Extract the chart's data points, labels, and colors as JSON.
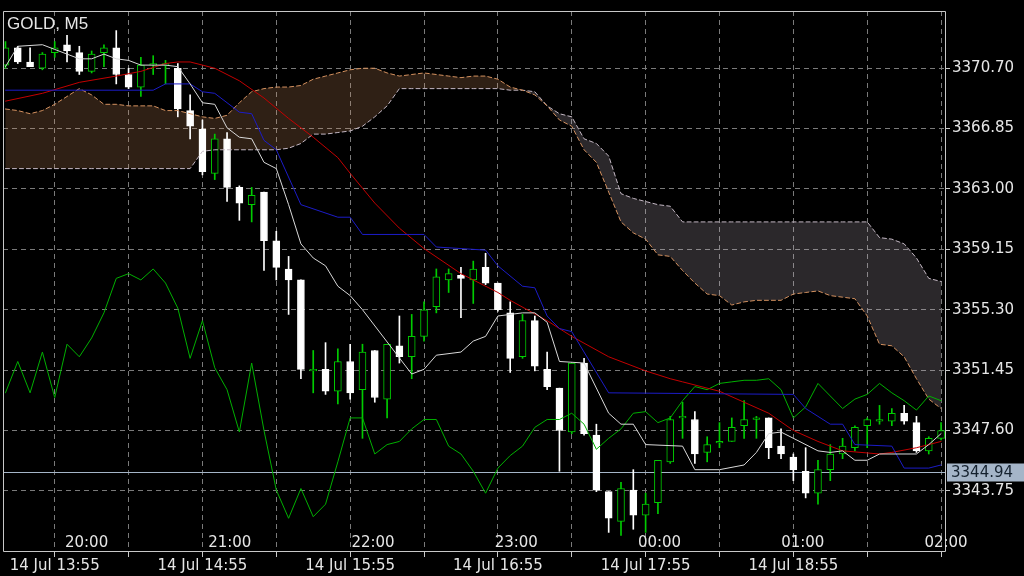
{
  "chart_data": {
    "type": "candlestick",
    "title": "GOLD, M5",
    "x": [
      "--07-14T13:35",
      "--07-14T13:40",
      "--07-14T13:45",
      "--07-14T13:50",
      "--07-14T13:55",
      "--07-14T14:00",
      "--07-14T14:05",
      "--07-14T14:10",
      "--07-14T14:15",
      "--07-14T14:20",
      "--07-14T14:25",
      "--07-14T14:30",
      "--07-14T14:35",
      "--07-14T14:40",
      "--07-14T14:45",
      "--07-14T14:50",
      "--07-14T14:55",
      "--07-14T15:00",
      "--07-14T15:05",
      "--07-14T15:10",
      "--07-14T15:15",
      "--07-14T15:20",
      "--07-14T15:25",
      "--07-14T15:30",
      "--07-14T15:35",
      "--07-14T15:40",
      "--07-14T15:45",
      "--07-14T15:50",
      "--07-14T15:55",
      "--07-14T16:00",
      "--07-14T16:05",
      "--07-14T16:10",
      "--07-14T16:15",
      "--07-14T16:20",
      "--07-14T16:25",
      "--07-14T16:30",
      "--07-14T16:35",
      "--07-14T16:40",
      "--07-14T16:45",
      "--07-14T16:50",
      "--07-14T16:55",
      "--07-14T17:00",
      "--07-14T17:05",
      "--07-14T17:10",
      "--07-14T17:15",
      "--07-14T17:20",
      "--07-14T17:25",
      "--07-14T17:30",
      "--07-14T17:35",
      "--07-14T17:40",
      "--07-14T17:45",
      "--07-14T17:50",
      "--07-14T17:55",
      "--07-14T18:00",
      "--07-14T18:05",
      "--07-14T18:10",
      "--07-14T18:15",
      "--07-14T18:20",
      "--07-14T18:25",
      "--07-14T18:30",
      "--07-14T18:35",
      "--07-14T18:40",
      "--07-14T18:45",
      "--07-14T18:50",
      "--07-14T18:55",
      "--07-14T19:00",
      "--07-14T19:05",
      "--07-14T19:10",
      "--07-14T19:15",
      "--07-14T19:20",
      "--07-14T19:25",
      "--07-14T19:30",
      "--07-14T19:35",
      "--07-14T19:40",
      "--07-14T19:45",
      "--07-14T19:50",
      "--07-14T19:55"
    ],
    "ohlc": [
      [
        3370.9,
        3372.4,
        3370.7,
        3372.0
      ],
      [
        3372.0,
        3372.1,
        3371.0,
        3371.1
      ],
      [
        3371.1,
        3372.0,
        3370.8,
        3370.8
      ],
      [
        3370.7,
        3371.7,
        3370.6,
        3371.6
      ],
      [
        3371.7,
        3372.4,
        3371.4,
        3372.0
      ],
      [
        3372.2,
        3372.8,
        3371.1,
        3371.8
      ],
      [
        3371.7,
        3372.1,
        3370.3,
        3370.5
      ],
      [
        3370.5,
        3371.8,
        3370.4,
        3371.6
      ],
      [
        3371.7,
        3372.2,
        3370.8,
        3372.0
      ],
      [
        3372.0,
        3373.1,
        3369.7,
        3370.3
      ],
      [
        3370.3,
        3370.7,
        3369.4,
        3369.5
      ],
      [
        3369.5,
        3371.4,
        3368.9,
        3370.9
      ],
      [
        3370.9,
        3371.5,
        3370.3,
        3371.0
      ],
      [
        3370.9,
        3371.2,
        3369.7,
        3371.0
      ],
      [
        3370.7,
        3371.0,
        3367.6,
        3368.1
      ],
      [
        3368.0,
        3369.0,
        3366.2,
        3367.0
      ],
      [
        3366.8,
        3367.4,
        3363.9,
        3364.1
      ],
      [
        3364.0,
        3366.5,
        3363.6,
        3366.2
      ],
      [
        3366.2,
        3366.6,
        3362.2,
        3363.1
      ],
      [
        3363.1,
        3363.2,
        3361.0,
        3362.1
      ],
      [
        3362.0,
        3363.1,
        3360.9,
        3362.6
      ],
      [
        3362.8,
        3362.8,
        3357.8,
        3359.7
      ],
      [
        3359.7,
        3360.3,
        3357.2,
        3358.0
      ],
      [
        3357.9,
        3358.7,
        3355.0,
        3357.2
      ],
      [
        3357.2,
        3357.2,
        3350.9,
        3351.5
      ],
      [
        3351.4,
        3352.7,
        3350.0,
        3351.5
      ],
      [
        3351.5,
        3353.2,
        3349.9,
        3350.1
      ],
      [
        3350.1,
        3352.8,
        3349.3,
        3352.0
      ],
      [
        3352.0,
        3353.1,
        3349.6,
        3350.0
      ],
      [
        3350.2,
        3353.1,
        3347.1,
        3352.6
      ],
      [
        3352.7,
        3352.7,
        3349.4,
        3349.7
      ],
      [
        3349.6,
        3353.1,
        3348.4,
        3353.1
      ],
      [
        3353.0,
        3354.9,
        3351.9,
        3352.3
      ],
      [
        3352.3,
        3355.0,
        3350.9,
        3353.6
      ],
      [
        3353.6,
        3355.8,
        3353.3,
        3355.3
      ],
      [
        3355.5,
        3357.9,
        3355.1,
        3357.4
      ],
      [
        3357.2,
        3357.9,
        3356.4,
        3357.6
      ],
      [
        3357.5,
        3358.0,
        3354.8,
        3357.3
      ],
      [
        3357.2,
        3358.4,
        3355.7,
        3357.9
      ],
      [
        3358.0,
        3358.9,
        3356.9,
        3357.0
      ],
      [
        3357.0,
        3357.0,
        3355.2,
        3355.3
      ],
      [
        3355.1,
        3355.8,
        3351.3,
        3352.2
      ],
      [
        3352.3,
        3355.0,
        3352.2,
        3354.6
      ],
      [
        3354.6,
        3354.9,
        3351.4,
        3351.7
      ],
      [
        3351.5,
        3352.6,
        3350.2,
        3350.4
      ],
      [
        3350.3,
        3350.3,
        3345.0,
        3347.6
      ],
      [
        3347.5,
        3351.9,
        3347.4,
        3351.9
      ],
      [
        3351.9,
        3352.2,
        3347.3,
        3347.4
      ],
      [
        3347.3,
        3348.0,
        3343.7,
        3343.8
      ],
      [
        3343.7,
        3343.7,
        3341.1,
        3342.0
      ],
      [
        3341.8,
        3344.3,
        3340.9,
        3343.9
      ],
      [
        3343.8,
        3345.1,
        3341.3,
        3342.2
      ],
      [
        3342.2,
        3343.6,
        3341.1,
        3342.9
      ],
      [
        3343.0,
        3345.7,
        3342.3,
        3345.7
      ],
      [
        3345.6,
        3348.5,
        3345.5,
        3348.3
      ],
      [
        3348.4,
        3349.4,
        3347.1,
        3348.5
      ],
      [
        3348.3,
        3348.8,
        3345.5,
        3346.1
      ],
      [
        3346.2,
        3347.2,
        3345.6,
        3346.7
      ],
      [
        3346.8,
        3348.1,
        3346.5,
        3346.9
      ],
      [
        3346.9,
        3348.4,
        3346.9,
        3347.8
      ],
      [
        3347.9,
        3349.5,
        3347.1,
        3348.3
      ],
      [
        3348.3,
        3348.5,
        3347.1,
        3348.4
      ],
      [
        3348.4,
        3348.4,
        3345.8,
        3346.5
      ],
      [
        3346.6,
        3347.7,
        3345.8,
        3346.1
      ],
      [
        3345.9,
        3346.1,
        3344.4,
        3345.1
      ],
      [
        3345.0,
        3346.5,
        3343.3,
        3343.6
      ],
      [
        3343.6,
        3345.7,
        3342.9,
        3345.1
      ],
      [
        3345.1,
        3346.7,
        3344.4,
        3346.1
      ],
      [
        3346.1,
        3347.1,
        3345.8,
        3346.6
      ],
      [
        3346.5,
        3347.9,
        3346.3,
        3347.8
      ],
      [
        3347.9,
        3348.4,
        3346.5,
        3348.3
      ],
      [
        3348.2,
        3349.2,
        3348.0,
        3348.3
      ],
      [
        3348.2,
        3349.0,
        3347.9,
        3348.7
      ],
      [
        3348.7,
        3349.2,
        3348.0,
        3348.2
      ],
      [
        3348.1,
        3348.5,
        3346.2,
        3346.3
      ],
      [
        3346.3,
        3347.2,
        3346.1,
        3347.1
      ],
      [
        3347.1,
        3348.1,
        3347.0,
        3347.6
      ]
    ],
    "colors": [
      "#00cc00",
      "#ffffff",
      "#ffffff",
      "#00cc00",
      "#00cc00",
      "#ffffff",
      "#ffffff",
      "#00cc00",
      "#00cc00",
      "#ffffff",
      "#ffffff",
      "#00cc00",
      "#00cc00",
      "#00cc00",
      "#ffffff",
      "#ffffff",
      "#ffffff",
      "#00cc00",
      "#ffffff",
      "#ffffff",
      "#00cc00",
      "#ffffff",
      "#ffffff",
      "#ffffff",
      "#ffffff",
      "#00cc00",
      "#ffffff",
      "#00cc00",
      "#ffffff",
      "#00cc00",
      "#ffffff",
      "#00cc00",
      "#ffffff",
      "#00cc00",
      "#00cc00",
      "#00cc00",
      "#00cc00",
      "#ffffff",
      "#00cc00",
      "#ffffff",
      "#ffffff",
      "#ffffff",
      "#00cc00",
      "#ffffff",
      "#ffffff",
      "#ffffff",
      "#00cc00",
      "#ffffff",
      "#ffffff",
      "#ffffff",
      "#00cc00",
      "#ffffff",
      "#00cc00",
      "#00cc00",
      "#00cc00",
      "#00cc00",
      "#ffffff",
      "#00cc00",
      "#00cc00",
      "#00cc00",
      "#00cc00",
      "#00cc00",
      "#ffffff",
      "#ffffff",
      "#ffffff",
      "#ffffff",
      "#00cc00",
      "#00cc00",
      "#00cc00",
      "#00cc00",
      "#00cc00",
      "#00cc00",
      "#00cc00",
      "#ffffff",
      "#ffffff",
      "#00cc00",
      "#00cc00"
    ],
    "series": [
      {
        "type": "line",
        "color": "#d8d8d8",
        "x": [
          "--07-14T13:35",
          "--07-14T13:40",
          "--07-14T13:50",
          "--07-14T13:55",
          "--07-14T14:00",
          "--07-14T14:05",
          "--07-14T14:10",
          "--07-14T14:15",
          "--07-14T14:20",
          "--07-14T14:25",
          "--07-14T14:30",
          "--07-14T14:40",
          "--07-14T14:45",
          "--07-14T14:50",
          "--07-14T14:55",
          "--07-14T15:00",
          "--07-14T15:05",
          "--07-14T15:10",
          "--07-14T15:15",
          "--07-14T15:20",
          "--07-14T15:25",
          "--07-14T15:30",
          "--07-14T15:35",
          "--07-14T15:40",
          "--07-14T15:45",
          "--07-14T15:50",
          "--07-14T15:55",
          "--07-14T16:00",
          "--07-14T16:20",
          "--07-14T16:25",
          "--07-14T16:30",
          "--07-14T16:40",
          "--07-14T16:45",
          "--07-14T16:50",
          "--07-14T16:55",
          "--07-14T17:05",
          "--07-14T17:10",
          "--07-14T17:15",
          "--07-14T17:20",
          "--07-14T17:30",
          "--07-14T17:40",
          "--07-14T17:45",
          "--07-14T17:50",
          "--07-14T17:55",
          "--07-14T18:10",
          "--07-14T18:15",
          "--07-14T18:25",
          "--07-14T18:35",
          "--07-14T18:40",
          "--07-14T18:45",
          "--07-14T18:50",
          "--07-14T18:55",
          "--07-14T19:05",
          "--07-14T19:10",
          "--07-14T19:15",
          "--07-14T19:20",
          "--07-14T19:25",
          "--07-14T19:30",
          "--07-14T19:45",
          "--07-14T19:50",
          "--07-14T19:55"
        ],
        "values": [
          3370.8,
          3372.1,
          3372.2,
          3371.9,
          3371.6,
          3371.3,
          3371.3,
          3371.6,
          3371.3,
          3371.2,
          3370.9,
          3370.9,
          3370.8,
          3369.7,
          3368.5,
          3368.4,
          3366.9,
          3366.3,
          3366.2,
          3364.7,
          3364.3,
          3362.0,
          3359.5,
          3358.6,
          3358.1,
          3356.8,
          3356.2,
          3355.3,
          3351.2,
          3351.5,
          3352.4,
          3352.6,
          3353.3,
          3353.6,
          3354.9,
          3355.1,
          3355.1,
          3354.5,
          3352.0,
          3351.9,
          3348.7,
          3348.0,
          3348.0,
          3346.7,
          3346.6,
          3345.1,
          3345.1,
          3345.4,
          3346.2,
          3347.4,
          3347.5,
          3347.1,
          3346.3,
          3346.2,
          3346.3,
          3345.7,
          3345.7,
          3346.1,
          3346.1,
          3346.7,
          3347.4
        ]
      },
      {
        "type": "line",
        "color": "#1c1cc8",
        "x": [
          "--07-14T13:35",
          "--07-14T14:35",
          "--07-14T14:40",
          "--07-14T14:50",
          "--07-14T14:55",
          "--07-14T15:00",
          "--07-14T15:10",
          "--07-14T15:15",
          "--07-14T15:20",
          "--07-14T15:25",
          "--07-14T15:35",
          "--07-14T15:50",
          "--07-14T15:55",
          "--07-14T16:00",
          "--07-14T16:25",
          "--07-14T16:30",
          "--07-14T16:50",
          "--07-14T16:55",
          "--07-14T17:05",
          "--07-14T17:10",
          "--07-14T17:15",
          "--07-14T17:20",
          "--07-14T17:25",
          "--07-14T17:40",
          "--07-14T18:55",
          "--07-14T19:00",
          "--07-14T19:10",
          "--07-14T19:15",
          "--07-14T19:20",
          "--07-14T19:35",
          "--07-14T19:40",
          "--07-14T19:50",
          "--07-14T19:55"
        ],
        "values": [
          3369.3,
          3369.3,
          3369.7,
          3369.7,
          3369.2,
          3369.1,
          3367.9,
          3367.8,
          3366.1,
          3365.5,
          3362.0,
          3361.2,
          3361.2,
          3360.1,
          3360.1,
          3359.3,
          3359.1,
          3358.1,
          3356.8,
          3356.7,
          3354.9,
          3354.1,
          3353.9,
          3350.0,
          3349.9,
          3349.0,
          3348.0,
          3348.0,
          3346.7,
          3346.6,
          3345.2,
          3345.2,
          3345.4
        ]
      },
      {
        "type": "line",
        "color": "#c40000",
        "x": [
          "--07-14T13:35",
          "--07-14T13:50",
          "--07-14T14:05",
          "--07-14T14:20",
          "--07-14T14:30",
          "--07-14T14:40",
          "--07-14T14:45",
          "--07-14T14:50",
          "--07-14T15:00",
          "--07-14T15:10",
          "--07-14T15:20",
          "--07-14T15:30",
          "--07-14T15:40",
          "--07-14T15:50",
          "--07-14T15:55",
          "--07-14T16:05",
          "--07-14T16:15",
          "--07-14T16:25",
          "--07-14T16:40",
          "--07-14T16:55",
          "--07-14T17:00",
          "--07-14T17:15",
          "--07-14T17:25",
          "--07-14T17:40",
          "--07-14T17:55",
          "--07-14T18:05",
          "--07-14T18:10",
          "--07-14T18:25",
          "--07-14T18:45",
          "--07-14T18:55",
          "--07-14T19:05",
          "--07-14T19:15",
          "--07-14T19:30",
          "--07-14T19:35",
          "--07-14T19:45",
          "--07-14T19:55"
        ],
        "values": [
          3368.6,
          3369.1,
          3369.8,
          3370.2,
          3370.5,
          3371.0,
          3371.1,
          3371.1,
          3370.7,
          3369.9,
          3368.8,
          3367.5,
          3366.3,
          3365.0,
          3364.0,
          3362.1,
          3360.5,
          3359.2,
          3357.6,
          3356.4,
          3355.9,
          3354.6,
          3353.6,
          3352.3,
          3351.4,
          3350.9,
          3350.7,
          3350.1,
          3348.7,
          3347.6,
          3346.9,
          3346.3,
          3346.1,
          3346.2,
          3346.5,
          3346.9
        ]
      },
      {
        "type": "line",
        "color": "#00b000",
        "values": [
          3350.0,
          3352.0,
          3350.0,
          3352.6,
          3349.7,
          3353.1,
          3352.3,
          3353.5,
          3355.1,
          3357.3,
          3357.6,
          3357.2,
          3357.9,
          3357.0,
          3355.4,
          3352.2,
          3354.6,
          3351.6,
          3350.2,
          3347.5,
          3351.9,
          3347.6,
          3343.8,
          3342.0,
          3343.9,
          3342.1,
          3342.9,
          3345.6,
          3348.4,
          3348.4,
          3346.1,
          3346.7,
          3346.9,
          3347.7,
          3348.3,
          3348.3,
          3346.6,
          3346.1,
          3345.0,
          3343.6,
          3345.2,
          3346.0,
          3346.6,
          3347.8,
          3348.3,
          3348.3,
          3348.7,
          3348.0,
          3346.4,
          3347.1,
          3347.7,
          3348.7,
          3348.8,
          3348.1,
          3348.4,
          3349.5,
          3350.4,
          3350.2,
          3350.6,
          3350.7,
          3350.8,
          3350.8,
          3350.9,
          3350.2,
          3348.4,
          3349.1,
          3350.6,
          3349.8,
          3349.0,
          3349.6,
          3349.9,
          3350.6,
          3350.0,
          3349.5,
          3348.9,
          3349.8,
          3349.5
        ]
      },
      {
        "type": "line",
        "color": "#d4915f",
        "line_style": "dashed",
        "values": [
          3368.1,
          3368.0,
          3367.8,
          3368.0,
          3368.4,
          3368.9,
          3369.4,
          3369.0,
          3368.4,
          3368.4,
          3368.3,
          3368.3,
          3368.3,
          3368.0,
          3368.0,
          3367.8,
          3367.6,
          3367.5,
          3367.7,
          3368.5,
          3369.2,
          3369.4,
          3369.5,
          3369.5,
          3369.6,
          3370.0,
          3370.2,
          3370.4,
          3370.6,
          3370.7,
          3370.7,
          3370.4,
          3370.2,
          3370.3,
          3370.4,
          3370.3,
          3370.2,
          3370.1,
          3370.2,
          3370.2,
          3370.0,
          3369.5,
          3369.3,
          3369.0,
          3368.3,
          3367.4,
          3367.0,
          3365.5,
          3364.7,
          3362.8,
          3360.9,
          3360.2,
          3359.8,
          3358.8,
          3358.7,
          3357.8,
          3357.0,
          3356.3,
          3356.2,
          3355.6,
          3355.8,
          3355.9,
          3355.9,
          3355.9,
          3356.3,
          3356.4,
          3356.5,
          3356.2,
          3356.1,
          3356.0,
          3354.9,
          3353.1,
          3353.0,
          3352.3,
          3350.9,
          3349.6,
          3349.0
        ],
        "upper": [
          3368.1,
          3368.0,
          3367.8,
          3368.0,
          3368.4,
          3368.9,
          3369.4,
          3369.0,
          3368.4,
          3368.4,
          3368.3,
          3368.3,
          3368.3,
          3368.0,
          3368.0,
          3367.8,
          3367.6,
          3367.5,
          3367.7,
          3368.5,
          3369.2,
          3369.4,
          3369.5,
          3369.5,
          3369.6,
          3370.0,
          3370.2,
          3370.4,
          3370.6,
          3370.7,
          3370.7,
          3370.4,
          3370.2,
          3370.3,
          3370.4,
          3370.3,
          3370.2,
          3370.1,
          3370.2,
          3370.2,
          3370.0,
          3369.5,
          3369.3,
          null,
          null,
          null,
          null,
          null,
          null,
          null,
          null,
          null,
          null,
          null,
          null,
          null,
          null,
          null,
          null,
          null,
          null,
          null,
          null,
          null,
          null,
          null,
          null,
          null,
          null,
          null,
          null,
          null,
          null,
          null,
          null,
          null,
          null
        ],
        "lower": [
          3364.3,
          3364.3,
          3364.3,
          3364.3,
          3364.3,
          3364.3,
          3364.3,
          3364.3,
          3364.3,
          3364.3,
          3364.3,
          3364.3,
          3364.3,
          3364.3,
          3364.3,
          3364.3,
          3365.4,
          3365.5,
          3365.5,
          3365.5,
          3365.5,
          3365.5,
          3365.5,
          3365.6,
          3365.9,
          3366.5,
          3366.5,
          3366.6,
          3366.7,
          3367.0,
          3367.6,
          3368.3,
          3369.4,
          3369.4,
          3369.4,
          3369.4,
          3369.4,
          3369.4,
          3369.4,
          3369.4,
          3369.4,
          3369.3,
          3369.3,
          null,
          null,
          null,
          null,
          null,
          null,
          null,
          null,
          null,
          null,
          null,
          null,
          null,
          null,
          null,
          null,
          null,
          null,
          null,
          null,
          null,
          null,
          null,
          null,
          null,
          null,
          null,
          null,
          null,
          null,
          null,
          null,
          null,
          null
        ]
      },
      {
        "type": "line",
        "color": "#c4b8c4",
        "line_style": "dashed",
        "values": [
          3364.3,
          3364.3,
          3364.3,
          3364.3,
          3364.3,
          3364.3,
          3364.3,
          3364.3,
          3364.3,
          3364.3,
          3364.3,
          3364.3,
          3364.3,
          3364.3,
          3364.3,
          3364.3,
          3365.4,
          3365.5,
          3365.5,
          3365.5,
          3365.5,
          3365.5,
          3365.5,
          3365.6,
          3365.9,
          3366.5,
          3366.5,
          3366.6,
          3366.7,
          3367.0,
          3367.6,
          3368.3,
          3369.4,
          3369.4,
          3369.4,
          3369.4,
          3369.4,
          3369.4,
          3369.4,
          3369.4,
          3369.4,
          3369.3,
          3369.3,
          3369.2,
          3368.3,
          3367.8,
          3367.6,
          3366.2,
          3365.9,
          3365.1,
          3362.7,
          3362.4,
          3362.2,
          3362.0,
          3361.9,
          3360.9,
          3360.9,
          3360.9,
          3360.9,
          3360.9,
          3360.9,
          3360.9,
          3360.9,
          3360.9,
          3360.9,
          3360.9,
          3360.9,
          3360.9,
          3360.9,
          3360.9,
          3360.9,
          3359.9,
          3359.8,
          3359.5,
          3358.6,
          3357.3,
          3357.1
        ],
        "upper": [
          null,
          null,
          null,
          null,
          null,
          null,
          null,
          null,
          null,
          null,
          null,
          null,
          null,
          null,
          null,
          null,
          null,
          null,
          null,
          null,
          null,
          null,
          null,
          null,
          null,
          null,
          null,
          null,
          null,
          null,
          null,
          null,
          null,
          null,
          null,
          null,
          null,
          null,
          null,
          null,
          null,
          null,
          3369.3,
          3369.2,
          3368.3,
          3367.8,
          3367.6,
          3366.2,
          3365.9,
          3365.1,
          3362.7,
          3362.4,
          3362.2,
          3362.0,
          3361.9,
          3360.9,
          3360.9,
          3360.9,
          3360.9,
          3360.9,
          3360.9,
          3360.9,
          3360.9,
          3360.9,
          3360.9,
          3360.9,
          3360.9,
          3360.9,
          3360.9,
          3360.9,
          3360.9,
          3359.9,
          3359.8,
          3359.5,
          3358.6,
          3357.3,
          3357.1
        ],
        "lower": [
          null,
          null,
          null,
          null,
          null,
          null,
          null,
          null,
          null,
          null,
          null,
          null,
          null,
          null,
          null,
          null,
          null,
          null,
          null,
          null,
          null,
          null,
          null,
          null,
          null,
          null,
          null,
          null,
          null,
          null,
          null,
          null,
          null,
          null,
          null,
          null,
          null,
          null,
          null,
          null,
          null,
          null,
          3369.3,
          3369.0,
          3368.3,
          3367.4,
          3367.0,
          3365.5,
          3364.7,
          3362.8,
          3360.9,
          3360.2,
          3359.8,
          3358.8,
          3358.7,
          3357.8,
          3357.0,
          3356.3,
          3356.2,
          3355.6,
          3355.8,
          3355.9,
          3355.9,
          3355.9,
          3356.3,
          3356.4,
          3356.5,
          3356.2,
          3356.1,
          3356.0,
          3354.9,
          3353.1,
          3353.0,
          3352.3,
          3350.9,
          3349.6,
          3349.0
        ]
      }
    ],
    "xlim": [
      "--07-14T13:34",
      "--07-14T19:57"
    ],
    "xticks": [
      {
        "value": "--07-14T13:55",
        "label": "14 Jul 13:55"
      },
      {
        "value": "--07-14T14:25",
        "label": null
      },
      {
        "value": "--07-14T14:55",
        "label": "14 Jul 14:55"
      },
      {
        "value": "--07-14T15:25",
        "label": null
      },
      {
        "value": "--07-14T15:55",
        "label": "14 Jul 15:55"
      },
      {
        "value": "--07-14T16:25",
        "label": null
      },
      {
        "value": "--07-14T16:55",
        "label": "14 Jul 16:55"
      },
      {
        "value": "--07-14T17:25",
        "label": null
      },
      {
        "value": "--07-14T17:55",
        "label": "14 Jul 17:55"
      },
      {
        "value": "--07-14T18:25",
        "label": null
      },
      {
        "value": "--07-14T18:55",
        "label": "14 Jul 18:55"
      },
      {
        "value": "--07-14T19:25",
        "label": null
      },
      {
        "value": "--07-14T19:55",
        "label": null
      }
    ],
    "x2lim": [
      "--07-14T19:25",
      "--07-15T02:00"
    ],
    "x2ticks": [
      {
        "value": "--07-14T20:00",
        "label": "20:00"
      },
      {
        "value": "--07-14T21:00",
        "label": "21:00"
      },
      {
        "value": "--07-14T22:00",
        "label": "22:00"
      },
      {
        "value": "--07-14T23:00",
        "label": "23:00"
      },
      {
        "value": "--07-15T00:00",
        "label": "00:00"
      },
      {
        "value": "--07-15T01:00",
        "label": "01:00"
      },
      {
        "value": "--07-15T02:00",
        "label": "02:00"
      }
    ],
    "ylim": [
      3339.85,
      3374.35
    ],
    "yticks": [
      {
        "value": 3343.75,
        "label": "3343.75"
      },
      {
        "value": 3347.6,
        "label": "3347.60"
      },
      {
        "value": 3351.45,
        "label": "3351.45"
      },
      {
        "value": 3355.3,
        "label": "3355.30"
      },
      {
        "value": 3359.15,
        "label": "3359.15"
      },
      {
        "value": 3363.0,
        "label": "3363.00"
      },
      {
        "value": 3366.85,
        "label": "3366.85"
      },
      {
        "value": 3370.7,
        "label": "3370.70"
      }
    ],
    "ref_lines": [
      {
        "axis": "y",
        "value": 3344.94,
        "label": "3344.94",
        "color": "#a5b5c8"
      }
    ],
    "grid": true
  }
}
